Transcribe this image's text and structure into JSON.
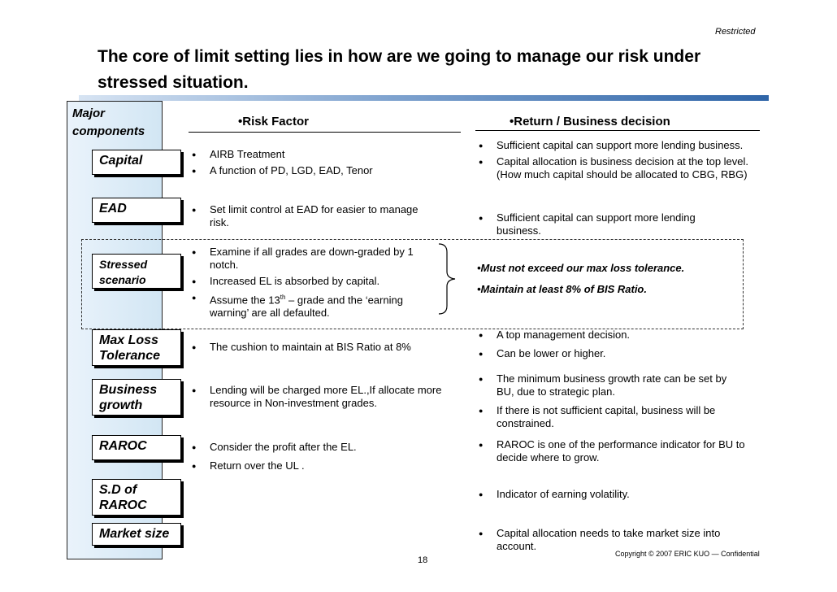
{
  "header": {
    "restricted": "Restricted"
  },
  "title": {
    "line1": "The core of limit setting lies in how are we going to manage our risk under",
    "line2": "stressed situation."
  },
  "panel": {
    "major_line1": "Major",
    "major_line2": "components"
  },
  "columns": {
    "risk_factor": "•Risk Factor",
    "return_decision": "•Return / Business decision"
  },
  "components": {
    "capital": "Capital",
    "ead": "EAD",
    "stressed1": "Stressed",
    "stressed2": "scenario",
    "maxloss1": "Max Loss",
    "maxloss2": "Tolerance",
    "business1": "Business",
    "business2": "growth",
    "raroc": "RAROC",
    "sd1": "S.D of",
    "sd2": "RAROC",
    "market": "Market size"
  },
  "risk": {
    "capital": [
      "AIRB Treatment",
      "A function of PD, LGD, EAD, Tenor"
    ],
    "ead": [
      "Set limit control at EAD for easier to manage risk."
    ],
    "stressed": [
      "Examine if all grades are down-graded by 1 notch.",
      "Increased EL is absorbed by capital."
    ],
    "stressed_13_pre": "Assume the 13",
    "stressed_13_sup": "th",
    "stressed_13_post": " – grade and the ‘earning warning’ are all defaulted.",
    "maxloss": [
      "The cushion to maintain at BIS Ratio at 8%"
    ],
    "business": [
      "Lending will be charged more EL.,If allocate more resource in Non-investment grades."
    ],
    "raroc": [
      "Consider the profit after the EL.",
      "Return over the UL ."
    ]
  },
  "ret": {
    "capital": [
      "Sufficient capital can support more lending business.",
      "Capital allocation is business decision at the top level.(How much capital should be allocated to CBG, RBG)"
    ],
    "ead": [
      "Sufficient capital can support more lending business."
    ],
    "stressed": [
      "•Must not exceed our max loss tolerance.",
      "•Maintain at least 8% of BIS Ratio."
    ],
    "maxloss": [
      "A top management decision.",
      "Can be lower or higher."
    ],
    "business": [
      "The minimum business growth rate can be set by BU, due to strategic plan.",
      "If there is not sufficient capital, business will be constrained."
    ],
    "raroc": [
      "RAROC is one of the performance indicator for BU to decide where to grow."
    ],
    "sd": [
      "Indicator of earning volatility."
    ],
    "market": [
      "Capital allocation needs to take market size into account."
    ]
  },
  "footer": {
    "copyright": "Copyright © 2007 ERIC KUO — Confidential",
    "page": "18"
  }
}
